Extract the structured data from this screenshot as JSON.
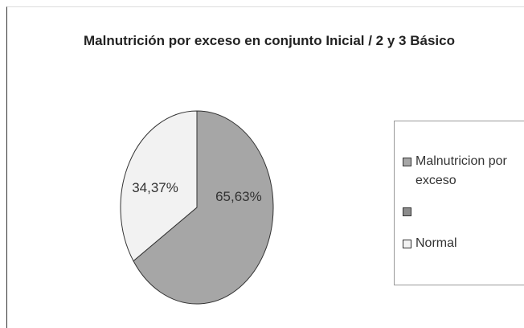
{
  "chart_data": {
    "type": "pie",
    "title": "Malnutrición por exceso en conjunto Inicial / 2 y 3 Básico",
    "categories": [
      "Malnutricion por exceso",
      null,
      "Normal"
    ],
    "values": [
      65.63,
      null,
      34.37
    ],
    "value_labels": [
      "65,63%",
      null,
      "34,37%"
    ],
    "colors": [
      "#a6a6a6",
      "#8c8c8c",
      "#f2f2f2"
    ],
    "legend": "right"
  }
}
